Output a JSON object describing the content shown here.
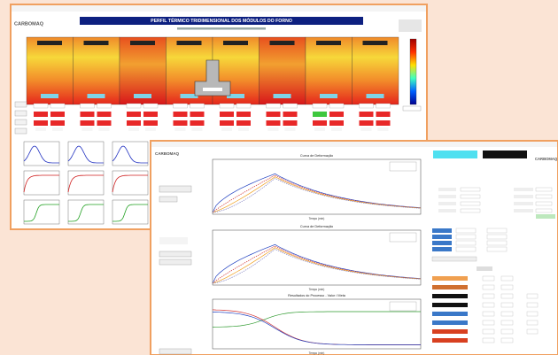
{
  "window1": {
    "title": "PERFIL TÉRMICO TRIDIMENSIONAL DOS MÓDULOS DO FORNO",
    "logo": "CARBOMAQ"
  },
  "window2": {
    "logo": "CARBOMAQ",
    "plots": [
      {
        "title": "Curva de Deformação",
        "xlabel": "Tempo (min)"
      },
      {
        "title": "Curva de Deformação",
        "xlabel": "Tempo (min)"
      },
      {
        "title": "Resultados do Processo - Valor / Meta",
        "xlabel": "Tempo (min)"
      }
    ]
  }
}
